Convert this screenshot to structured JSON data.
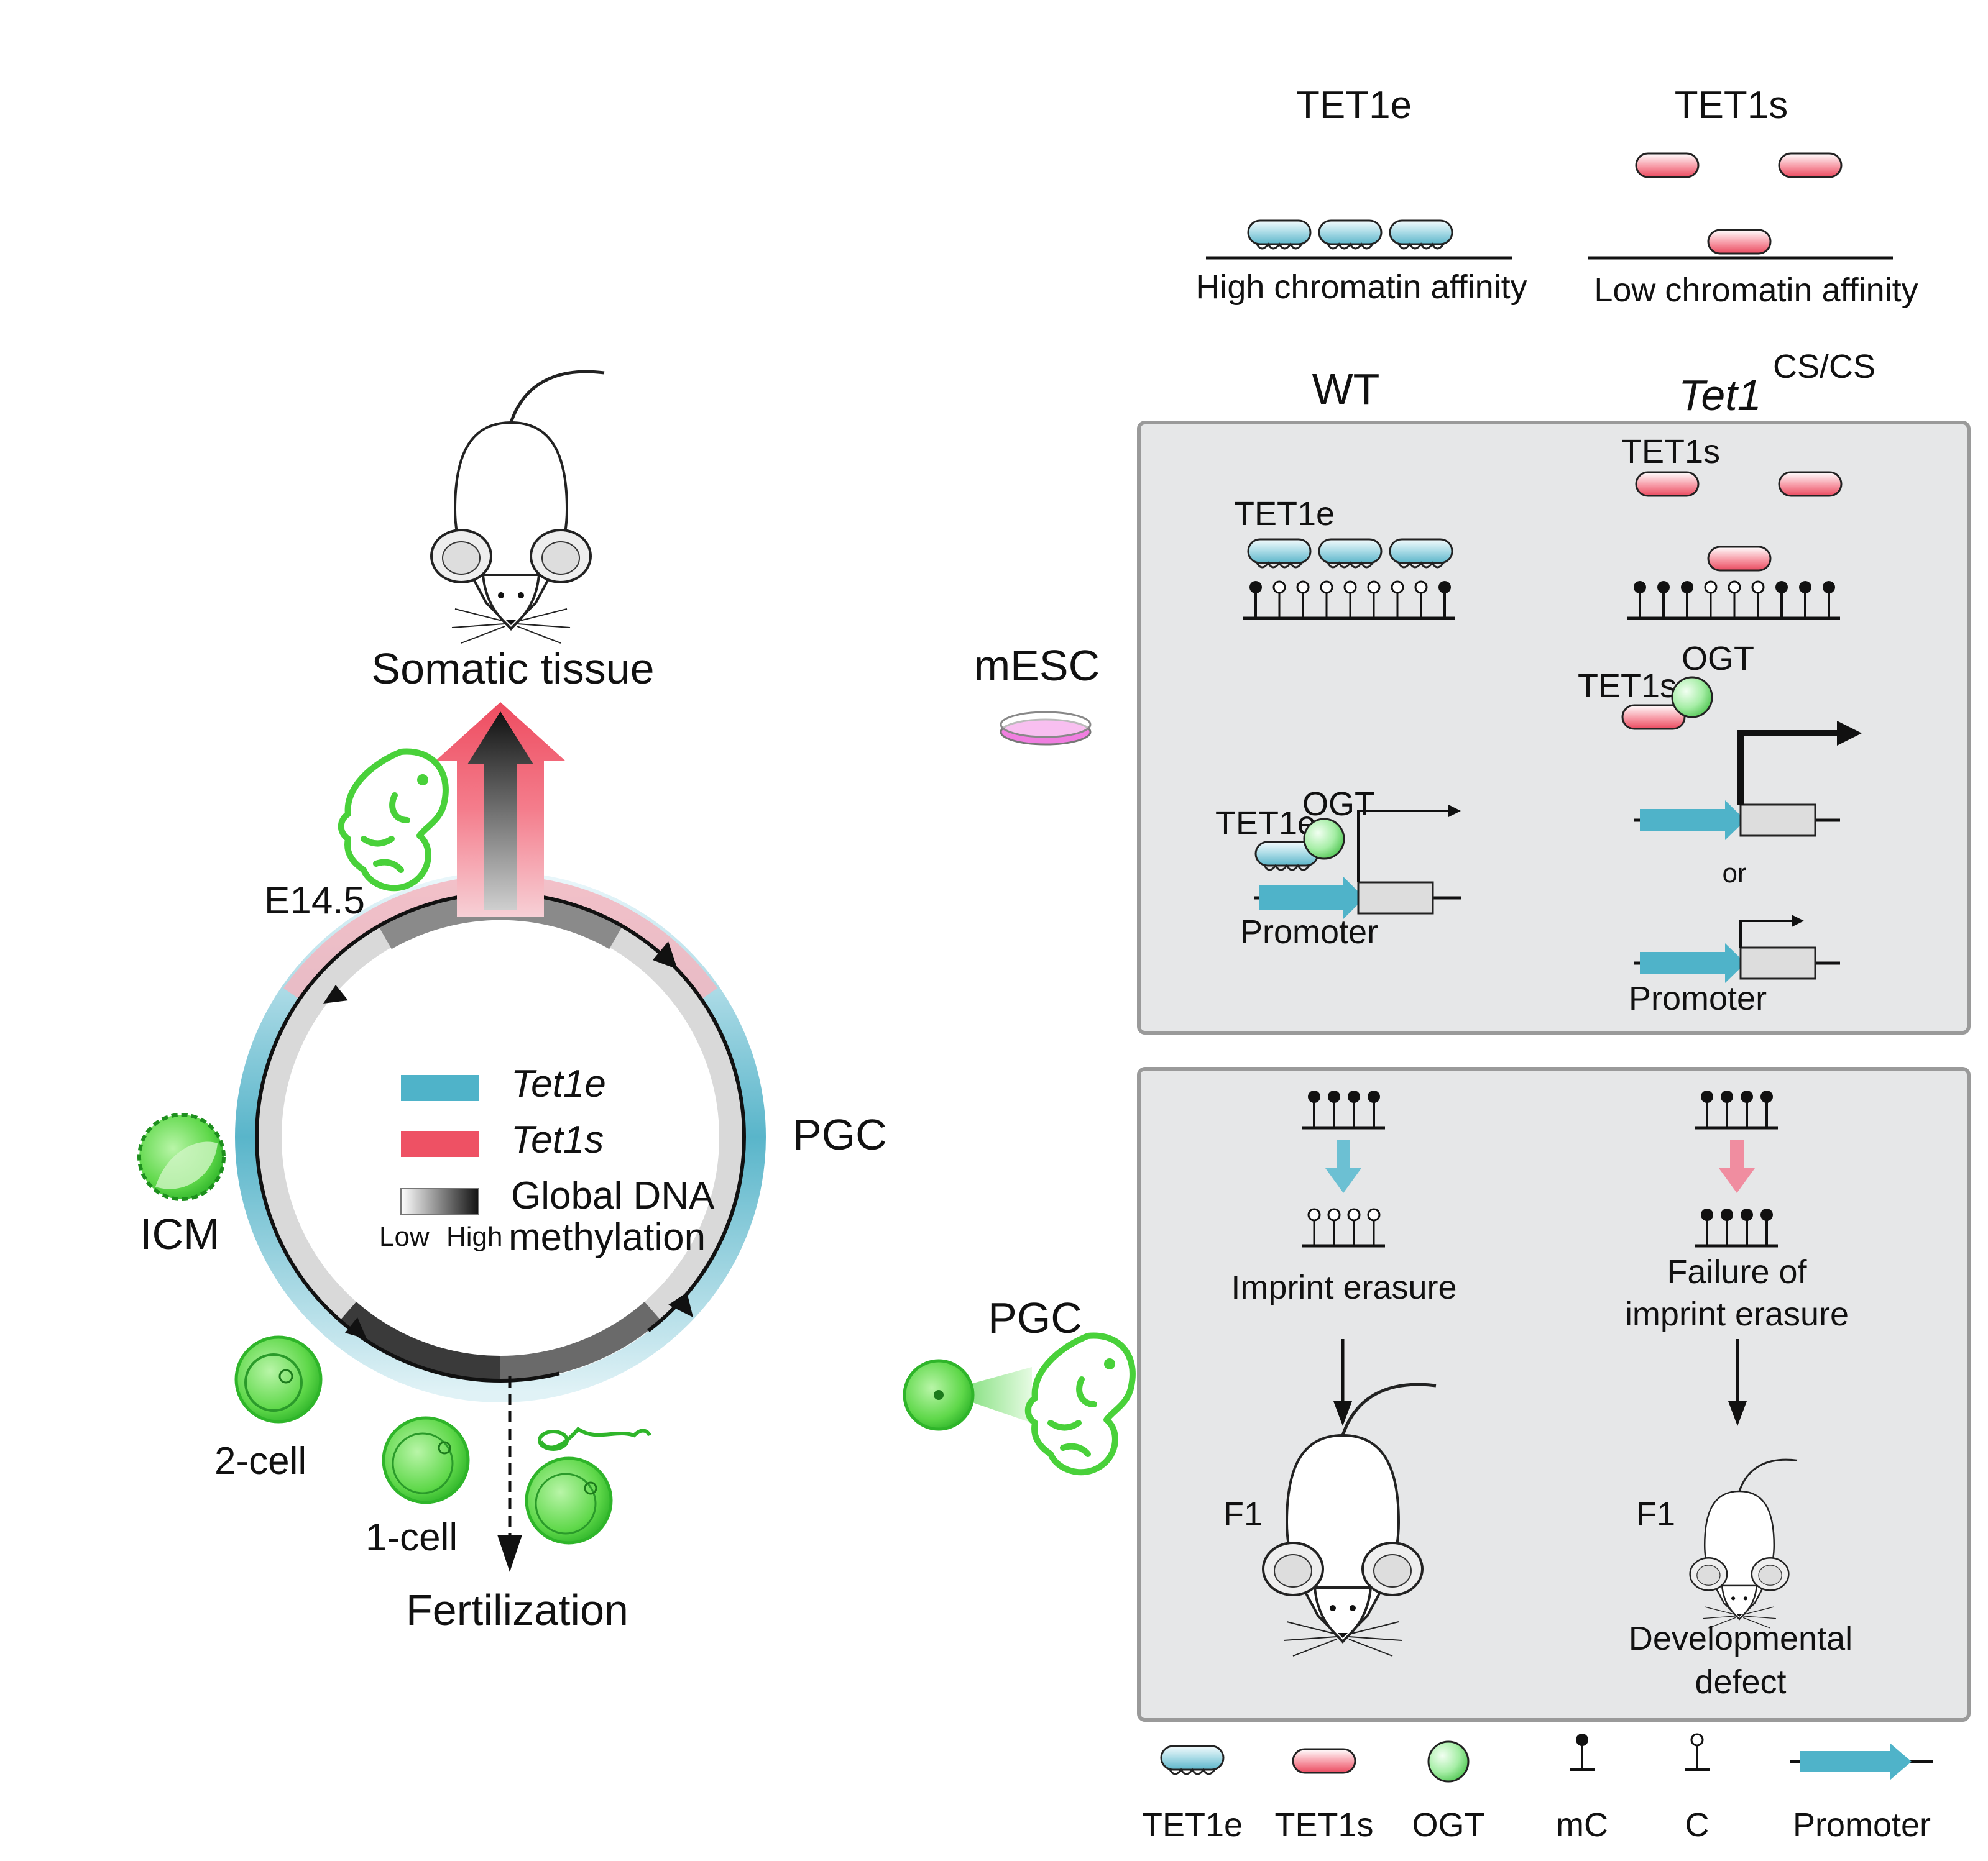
{
  "colors": {
    "tet1e": "#4fb3c9",
    "tet1s": "#ee5164",
    "ogt": "#6fd66f",
    "panel_bg": "#e6e7e8",
    "panel_border": "#9a9a9a",
    "embryo_green": "#49d13a"
  },
  "top": {
    "tet1e_title": "TET1e",
    "tet1s_title": "TET1s",
    "high_affinity": "High chromatin affinity",
    "low_affinity": "Low chromatin affinity"
  },
  "columns": {
    "wt": "WT",
    "mutant_gene": "Tet1",
    "mutant_sup": "CS/CS"
  },
  "rows": {
    "mesc": "mESC",
    "pgc": "PGC"
  },
  "mesc_panel": {
    "wt_protein": "TET1e",
    "wt_ogt": "OGT",
    "wt_protein2": "TET1e",
    "wt_promoter": "Promoter",
    "mut_protein": "TET1s",
    "mut_ogt": "OGT",
    "mut_protein2": "TET1s",
    "or": "or",
    "mut_promoter": "Promoter"
  },
  "pgc_panel": {
    "wt_result": "Imprint erasure",
    "mut_result_line1": "Failure of",
    "mut_result_line2": "imprint erasure",
    "wt_f1": "F1",
    "mut_f1": "F1",
    "mut_outcome_line1": "Developmental",
    "mut_outcome_line2": "defect"
  },
  "cycle": {
    "somatic": "Somatic tissue",
    "e145": "E14.5",
    "pgc": "PGC",
    "icm": "ICM",
    "two_cell": "2-cell",
    "one_cell": "1-cell",
    "fertilization": "Fertilization",
    "legend_tet1e": "Tet1e",
    "legend_tet1s": "Tet1s",
    "legend_methyl_line1": "Global DNA",
    "legend_methyl_line2": "methylation",
    "legend_low": "Low",
    "legend_high": "High"
  },
  "key": {
    "tet1e": "TET1e",
    "tet1s": "TET1s",
    "ogt": "OGT",
    "mc": "mC",
    "c": "C",
    "promoter": "Promoter"
  },
  "icons": [
    "mouse-icon",
    "embryo-icon",
    "cell-icon",
    "petri-dish-icon",
    "sperm-icon"
  ]
}
